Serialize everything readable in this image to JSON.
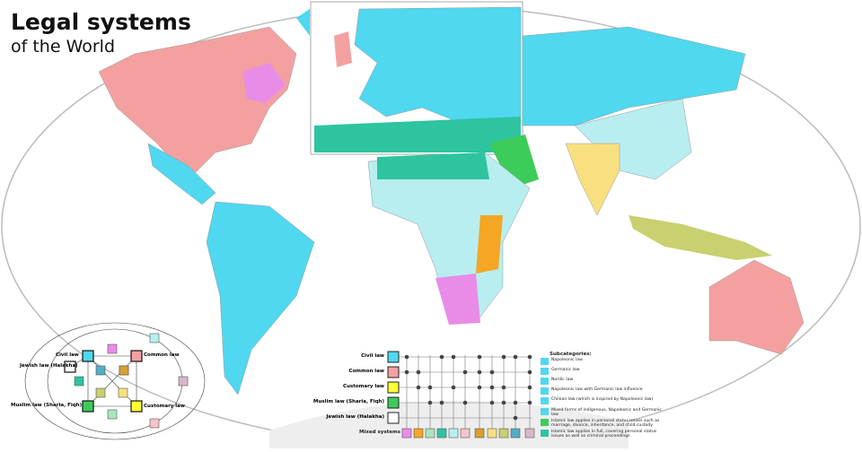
{
  "title": {
    "line1": "Legal systems",
    "line2": "of the World"
  },
  "colors": {
    "civil": "#4fd8f0",
    "common": "#f4a0a0",
    "customary": "#ffff33",
    "muslim": "#3ccc5a",
    "jewish": "#ffffff",
    "ocean": "#ffffff",
    "land_outline": "#999999"
  },
  "legend": {
    "systems": [
      {
        "label": "Civil law",
        "color": "#4fd8f0"
      },
      {
        "label": "Common law",
        "color": "#f4a0a0"
      },
      {
        "label": "Customary law",
        "color": "#ffff33"
      },
      {
        "label": "Muslim law (Sharia, Fiqh)",
        "color": "#3ccc5a"
      },
      {
        "label": "Jewish law (Halakha)",
        "color": "#ffffff"
      }
    ],
    "mixed_label": "Mixed systems",
    "mixed_colors": [
      "#e88ce8",
      "#f5a623",
      "#a8e6c0",
      "#2ec4a0",
      "#b8eef0",
      "#f5c4cc",
      "#d9a030",
      "#f8e080",
      "#c8d070",
      "#50b0c8",
      "#d8b8c8"
    ],
    "matrix": [
      [
        0,
        3,
        4,
        6,
        8,
        9,
        10
      ],
      [
        0,
        1,
        5,
        6,
        7,
        10
      ],
      [
        1,
        2,
        4,
        6,
        7,
        8,
        10
      ],
      [
        2,
        3,
        5,
        7,
        8,
        9,
        10
      ],
      [
        9
      ]
    ],
    "subcategories_title": "Subcategories:",
    "subcategories": [
      {
        "label": "Napoleonic law",
        "color": "#4fd8f0"
      },
      {
        "label": "Germanic law",
        "color": "#4fd8f0"
      },
      {
        "label": "Nordic law",
        "color": "#4fd8f0"
      },
      {
        "label": "Napoleonic law with Germanic law influence",
        "color": "#4fd8f0"
      },
      {
        "label": "Chilean law (which is inspired by Napoleonic law)",
        "color": "#4fd8f0"
      },
      {
        "label": "Mixed forms of indigenous, Napoleonic and Germanic law",
        "color": "#4fd8f0"
      },
      {
        "label": "Islamic law applies in personal status issues such as marriage, divorce, inheritance, and child custody",
        "color": "#3ccc5a"
      },
      {
        "label": "Islamic law applies in full, covering personal status issues as well as criminal proceedings",
        "color": "#2ec4a0"
      }
    ]
  }
}
